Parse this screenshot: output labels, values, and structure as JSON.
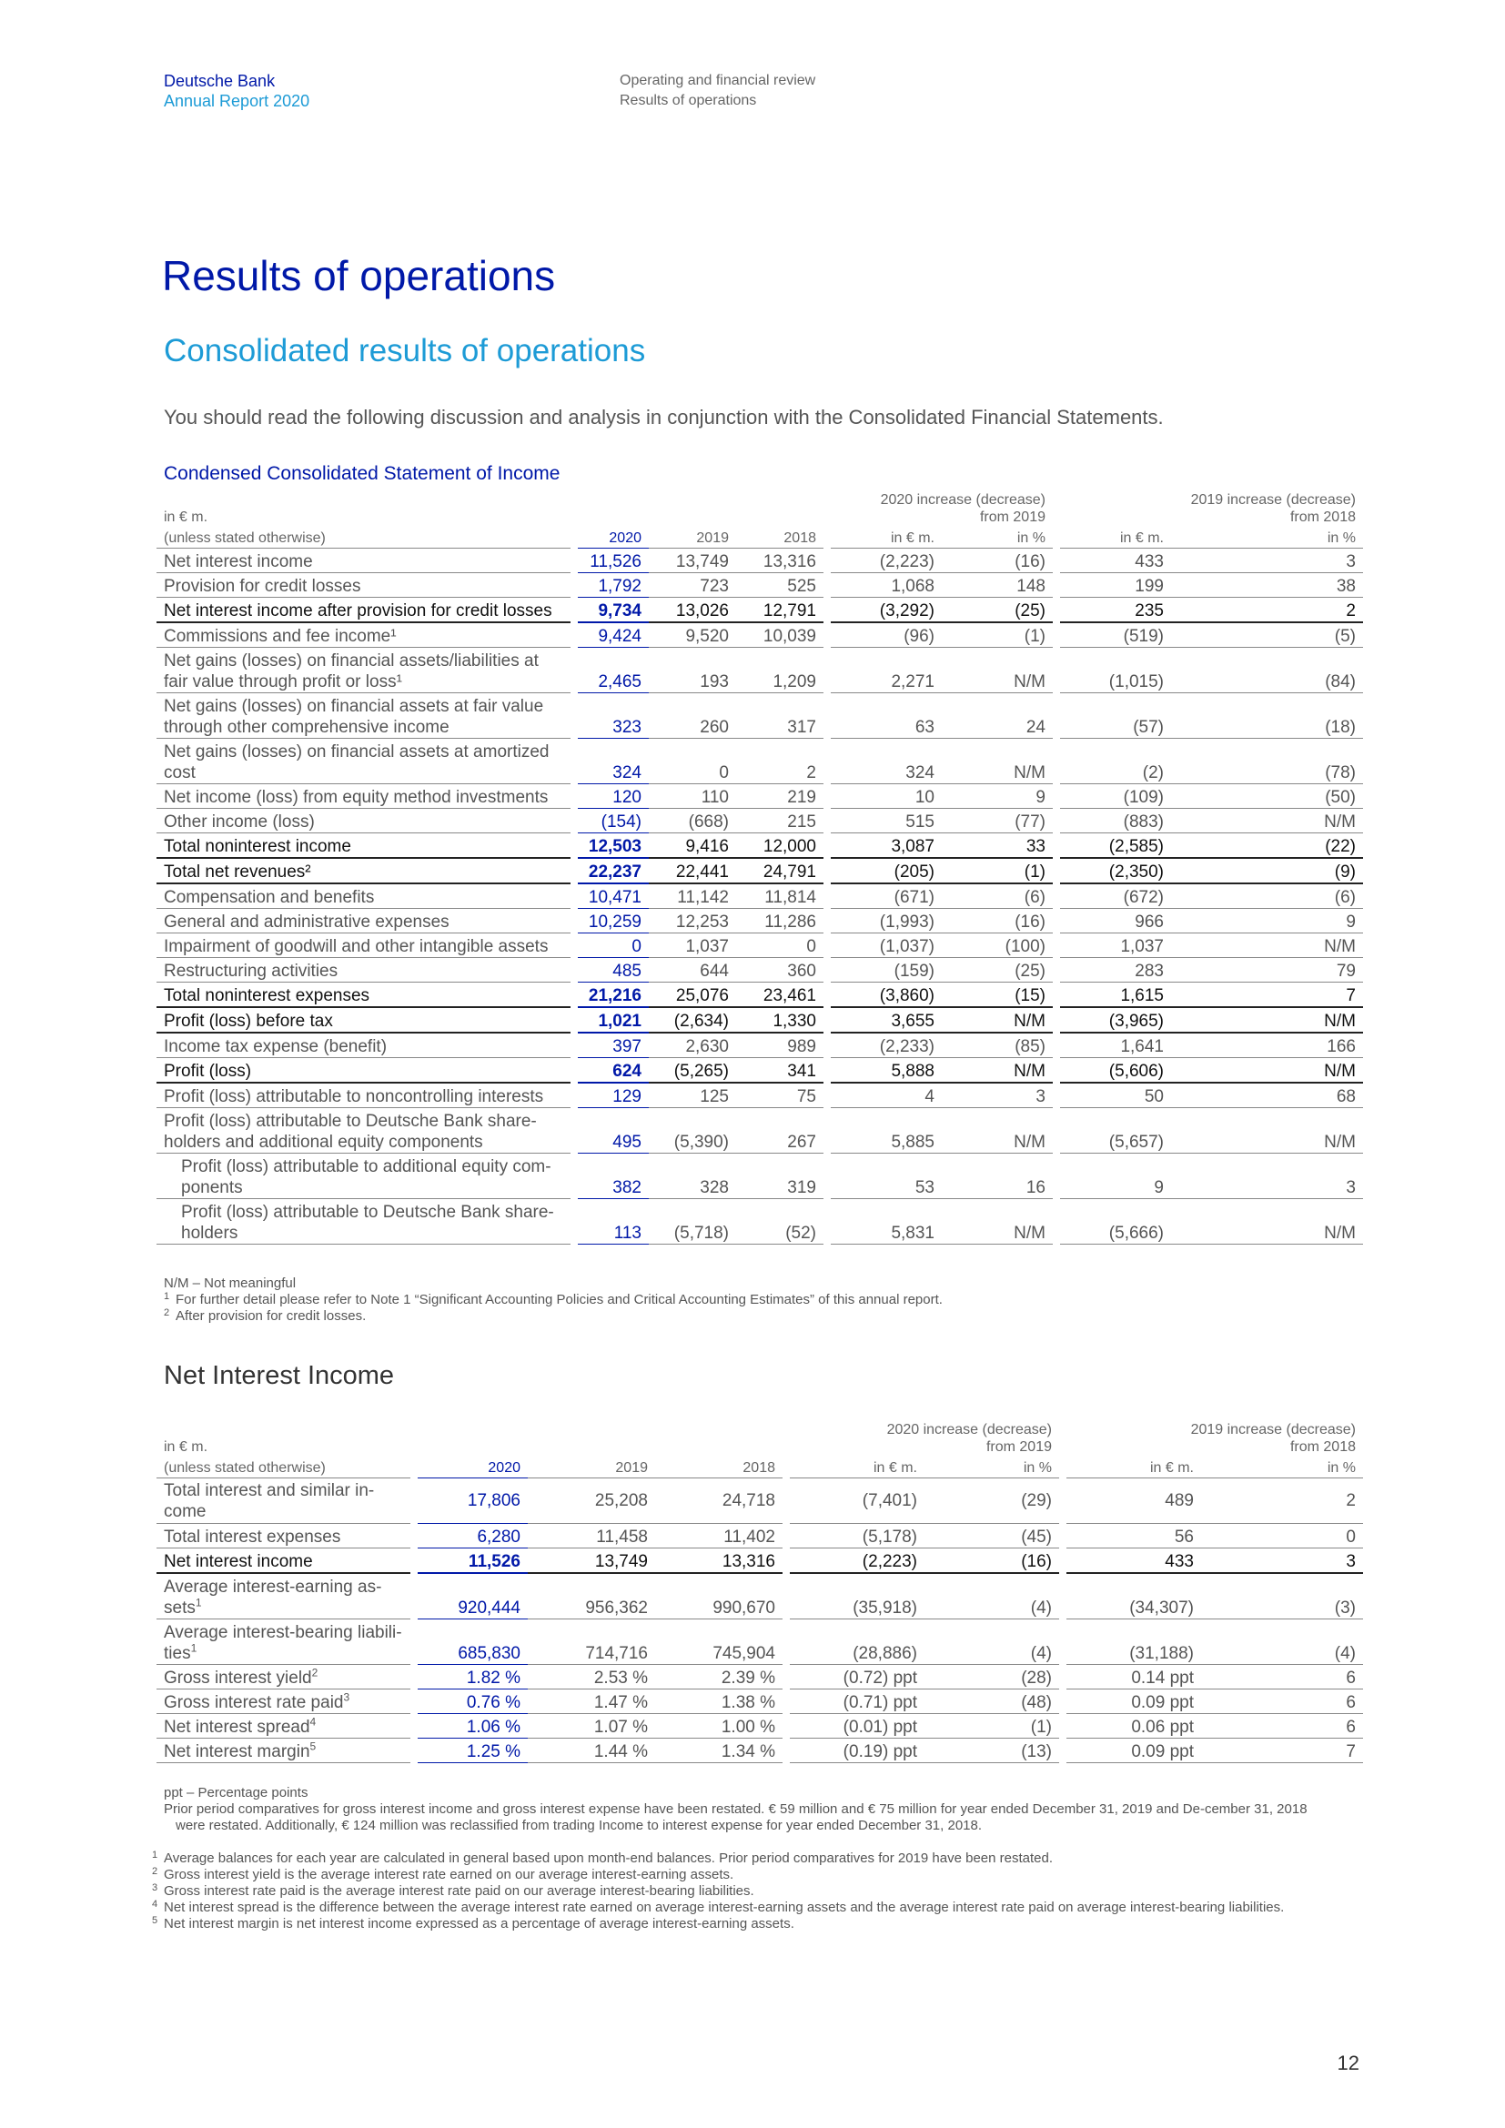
{
  "header": {
    "company": "Deutsche Bank",
    "report": "Annual Report 2020",
    "section": "Operating and financial review",
    "subsection": "Results of operations"
  },
  "title": "Results of operations",
  "subtitle": "Consolidated results of operations",
  "intro": "You should read the following discussion and analysis in conjunction with the Consolidated Financial Statements.",
  "income_table": {
    "title": "Condensed Consolidated Statement of Income",
    "unit": "in € m.",
    "unit2": "(unless stated otherwise)",
    "group1": [
      "2020 increase (decrease)",
      "from 2019"
    ],
    "group2": [
      "2019 increase (decrease)",
      "from 2018"
    ],
    "columns": [
      "2020",
      "2019",
      "2018",
      "in € m.",
      "in %",
      "in € m.",
      "in %"
    ],
    "rows": [
      {
        "label": "Net interest income",
        "values": [
          "11,526",
          "13,749",
          "13,316",
          "(2,223)",
          "(16)",
          "433",
          "3"
        ]
      },
      {
        "label": "Provision for credit losses",
        "values": [
          "1,792",
          "723",
          "525",
          "1,068",
          "148",
          "199",
          "38"
        ]
      },
      {
        "label": "Net interest income after provision for credit losses",
        "values": [
          "9,734",
          "13,026",
          "12,791",
          "(3,292)",
          "(25)",
          "235",
          "2"
        ],
        "bold": true
      },
      {
        "label": "Commissions and fee income¹",
        "values": [
          "9,424",
          "9,520",
          "10,039",
          "(96)",
          "(1)",
          "(519)",
          "(5)"
        ]
      },
      {
        "label": "Net gains (losses) on financial assets/liabilities at fair value through profit or loss¹",
        "values": [
          "2,465",
          "193",
          "1,209",
          "2,271",
          "N/M",
          "(1,015)",
          "(84)"
        ],
        "double": true
      },
      {
        "label": "Net gains (losses) on financial assets at fair value through other comprehensive income",
        "values": [
          "323",
          "260",
          "317",
          "63",
          "24",
          "(57)",
          "(18)"
        ],
        "double": true
      },
      {
        "label": "Net gains (losses) on financial assets at amortized cost",
        "values": [
          "324",
          "0",
          "2",
          "324",
          "N/M",
          "(2)",
          "(78)"
        ],
        "double": true
      },
      {
        "label": "Net income (loss) from equity method investments",
        "values": [
          "120",
          "110",
          "219",
          "10",
          "9",
          "(109)",
          "(50)"
        ]
      },
      {
        "label": "Other income (loss)",
        "values": [
          "(154)",
          "(668)",
          "215",
          "515",
          "(77)",
          "(883)",
          "N/M"
        ]
      },
      {
        "label": "Total noninterest income",
        "values": [
          "12,503",
          "9,416",
          "12,000",
          "3,087",
          "33",
          "(2,585)",
          "(22)"
        ],
        "bold": true
      },
      {
        "label": "Total net revenues²",
        "values": [
          "22,237",
          "22,441",
          "24,791",
          "(205)",
          "(1)",
          "(2,350)",
          "(9)"
        ],
        "bold": true
      },
      {
        "label": "Compensation and benefits",
        "values": [
          "10,471",
          "11,142",
          "11,814",
          "(671)",
          "(6)",
          "(672)",
          "(6)"
        ]
      },
      {
        "label": "General and administrative expenses",
        "values": [
          "10,259",
          "12,253",
          "11,286",
          "(1,993)",
          "(16)",
          "966",
          "9"
        ]
      },
      {
        "label": "Impairment of goodwill and other intangible assets",
        "values": [
          "0",
          "1,037",
          "0",
          "(1,037)",
          "(100)",
          "1,037",
          "N/M"
        ]
      },
      {
        "label": "Restructuring activities",
        "values": [
          "485",
          "644",
          "360",
          "(159)",
          "(25)",
          "283",
          "79"
        ]
      },
      {
        "label": "Total noninterest expenses",
        "values": [
          "21,216",
          "25,076",
          "23,461",
          "(3,860)",
          "(15)",
          "1,615",
          "7"
        ],
        "bold": true
      },
      {
        "label": "Profit (loss) before tax",
        "values": [
          "1,021",
          "(2,634)",
          "1,330",
          "3,655",
          "N/M",
          "(3,965)",
          "N/M"
        ],
        "bold": true
      },
      {
        "label": "Income tax expense (benefit)",
        "values": [
          "397",
          "2,630",
          "989",
          "(2,233)",
          "(85)",
          "1,641",
          "166"
        ]
      },
      {
        "label": "Profit (loss)",
        "values": [
          "624",
          "(5,265)",
          "341",
          "5,888",
          "N/M",
          "(5,606)",
          "N/M"
        ],
        "bold": true
      },
      {
        "label": "Profit (loss) attributable to noncontrolling interests",
        "values": [
          "129",
          "125",
          "75",
          "4",
          "3",
          "50",
          "68"
        ]
      },
      {
        "label": "Profit (loss) attributable to Deutsche Bank share-holders and additional equity components",
        "values": [
          "495",
          "(5,390)",
          "267",
          "5,885",
          "N/M",
          "(5,657)",
          "N/M"
        ],
        "double": true
      },
      {
        "label": "Profit (loss) attributable to additional equity com-ponents",
        "values": [
          "382",
          "328",
          "319",
          "53",
          "16",
          "9",
          "3"
        ],
        "double": true,
        "indent": true
      },
      {
        "label": "Profit (loss) attributable to Deutsche Bank share-holders",
        "values": [
          "113",
          "(5,718)",
          "(52)",
          "5,831",
          "N/M",
          "(5,666)",
          "N/M"
        ],
        "double": true,
        "indent": true
      }
    ],
    "notes": [
      "N/M – Not meaningful",
      "For further detail please refer to Note 1 “Significant Accounting Policies and Critical Accounting Estimates” of this annual report.",
      "After provision for credit losses."
    ]
  },
  "section2_title": "Net Interest Income",
  "nii_table": {
    "unit": "in € m.",
    "unit2": "(unless stated otherwise)",
    "group1": [
      "2020 increase (decrease)",
      "from 2019"
    ],
    "group2": [
      "2019 increase (decrease)",
      "from 2018"
    ],
    "columns": [
      "2020",
      "2019",
      "2018",
      "in € m.",
      "in %",
      "in € m.",
      "in %"
    ],
    "rows": [
      {
        "label": "Total interest and similar in-come",
        "values": [
          "17,806",
          "25,208",
          "24,718",
          "(7,401)",
          "(29)",
          "489",
          "2"
        ],
        "double": true,
        "midalign": true
      },
      {
        "label": "Total interest expenses",
        "values": [
          "6,280",
          "11,458",
          "11,402",
          "(5,178)",
          "(45)",
          "56",
          "0"
        ]
      },
      {
        "label": "Net interest income",
        "values": [
          "11,526",
          "13,749",
          "13,316",
          "(2,223)",
          "(16)",
          "433",
          "3"
        ],
        "bold": true
      },
      {
        "label": "Average interest-earning as-sets",
        "sup": "1",
        "values": [
          "920,444",
          "956,362",
          "990,670",
          "(35,918)",
          "(4)",
          "(34,307)",
          "(3)"
        ],
        "double": true
      },
      {
        "label": "Average interest-bearing liabili-ties",
        "sup": "1",
        "values": [
          "685,830",
          "714,716",
          "745,904",
          "(28,886)",
          "(4)",
          "(31,188)",
          "(4)"
        ],
        "double": true
      },
      {
        "label": "Gross interest yield",
        "sup": "2",
        "values": [
          "1.82 %",
          "2.53 %",
          "2.39 %",
          "(0.72) ppt",
          "(28)",
          "0.14 ppt",
          "6"
        ]
      },
      {
        "label": "Gross interest rate paid",
        "sup": "3",
        "values": [
          "0.76 %",
          "1.47 %",
          "1.38 %",
          "(0.71) ppt",
          "(48)",
          "0.09 ppt",
          "6"
        ]
      },
      {
        "label": "Net interest spread",
        "sup": "4",
        "values": [
          "1.06 %",
          "1.07 %",
          "1.00 %",
          "(0.01) ppt",
          "(1)",
          "0.06 ppt",
          "6"
        ]
      },
      {
        "label": "Net interest margin",
        "sup": "5",
        "values": [
          "1.25 %",
          "1.44 %",
          "1.34 %",
          "(0.19) ppt",
          "(13)",
          "0.09 ppt",
          "7"
        ]
      }
    ],
    "notes": [
      "ppt – Percentage points",
      "Prior period comparatives for gross interest income and gross interest expense have been restated. € 59 million and € 75 million for year ended December 31, 2019 and De-cember 31, 2018 were restated. Additionally, € 124 million was reclassified from trading Income to interest expense for year ended December 31, 2018.",
      "Average balances for each year are calculated in general based upon month-end balances. Prior period comparatives for 2019 have been restated.",
      "Gross interest yield is the average interest rate earned on our average interest-earning assets.",
      "Gross interest rate paid is the average interest rate paid on our average interest-bearing liabilities.",
      "Net interest spread is the difference between the average interest rate earned on average interest-earning assets and the average interest rate paid on average interest-bearing liabilities.",
      "Net interest margin is net interest income expressed as a percentage of average interest-earning assets."
    ],
    "note_marks": [
      "1",
      "2",
      "3",
      "4",
      "5"
    ]
  },
  "page_number": "12"
}
